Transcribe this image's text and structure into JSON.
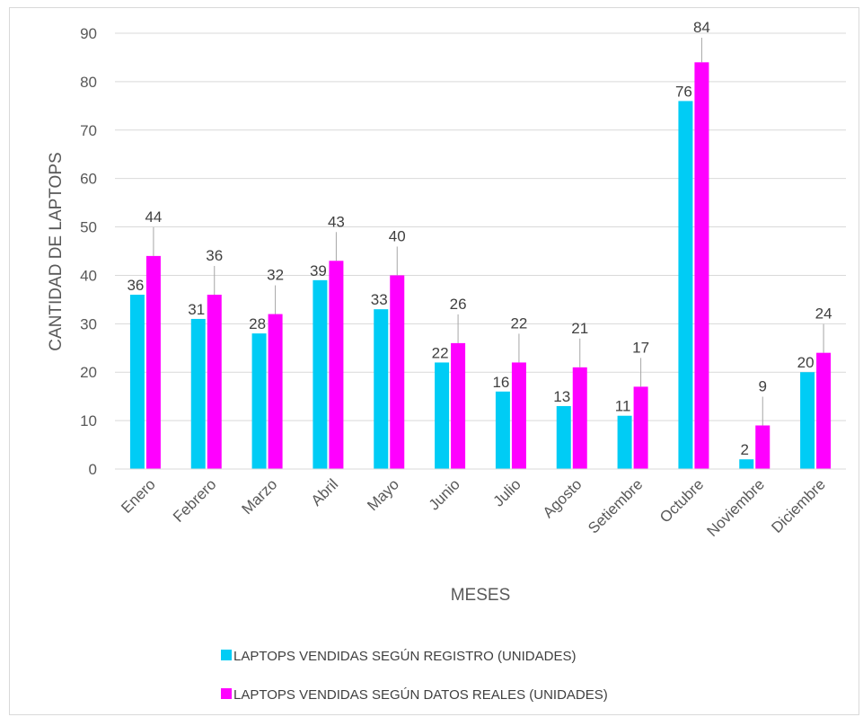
{
  "chart_data": {
    "type": "bar",
    "title": "",
    "xlabel": "MESES",
    "ylabel": "CANTIDAD DE LAPTOPS",
    "ylim": [
      0,
      90
    ],
    "y_ticks": [
      0,
      10,
      20,
      30,
      40,
      50,
      60,
      70,
      80,
      90
    ],
    "grid": true,
    "legend_position": "bottom",
    "categories": [
      "Enero",
      "Febrero",
      "Marzo",
      "Abril",
      "Mayo",
      "Junio",
      "Julio",
      "Agosto",
      "Setiembre",
      "Octubre",
      "Noviembre",
      "Diciembre"
    ],
    "series": [
      {
        "name": "LAPTOPS VENDIDAS  SEGÚN REGISTRO (UNIDADES)",
        "color": "#00ccf5",
        "values": [
          36,
          31,
          28,
          39,
          33,
          22,
          16,
          13,
          11,
          76,
          2,
          20
        ]
      },
      {
        "name": "LAPTOPS VENDIDAS  SEGÚN DATOS REALES (UNIDADES)",
        "color": "#ff00ff",
        "values": [
          44,
          36,
          32,
          43,
          40,
          26,
          22,
          21,
          17,
          84,
          9,
          24
        ]
      }
    ]
  }
}
